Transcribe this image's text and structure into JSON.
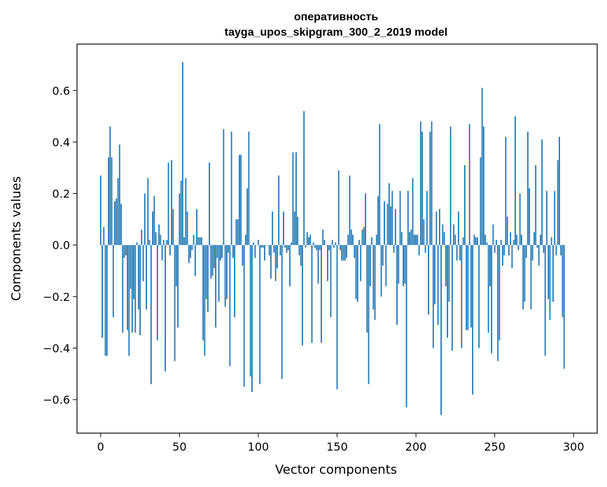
{
  "chart_data": {
    "type": "bar",
    "title": "оперативность",
    "subtitle": "tayga_upos_skipgram_300_2_2019 model",
    "xlabel": "Vector components",
    "ylabel": "Components values",
    "xlim": [
      -15,
      315
    ],
    "ylim": [
      -0.73,
      0.78
    ],
    "xticks": [
      0,
      50,
      100,
      150,
      200,
      250,
      300
    ],
    "xtick_labels": [
      "0",
      "50",
      "100",
      "150",
      "200",
      "250",
      "300"
    ],
    "yticks": [
      -0.6,
      -0.4,
      -0.2,
      0.0,
      0.2,
      0.4,
      0.6
    ],
    "ytick_labels": [
      "−0.6",
      "−0.4",
      "−0.2",
      "0.0",
      "0.2",
      "0.4",
      "0.6"
    ],
    "grid": false,
    "bar_color": "#1f77b4",
    "values": [
      0.27,
      -0.36,
      0.07,
      -0.43,
      -0.43,
      0.34,
      0.46,
      0.34,
      -0.28,
      0.17,
      0.18,
      0.26,
      0.39,
      0.16,
      -0.34,
      -0.05,
      -0.04,
      -0.33,
      -0.43,
      -0.17,
      -0.34,
      -0.21,
      -0.34,
      0.01,
      -0.25,
      -0.35,
      0.06,
      -0.14,
      0.2,
      -0.25,
      0.26,
      0.02,
      -0.54,
      0.13,
      0.19,
      0.05,
      -0.37,
      0.08,
      0.04,
      -0.06,
      0.02,
      -0.49,
      0.02,
      0.32,
      -0.04,
      0.33,
      0.14,
      -0.45,
      -0.16,
      -0.32,
      0.2,
      0.25,
      0.71,
      0.03,
      0.26,
      0.13,
      -0.07,
      -0.05,
      -0.02,
      0.04,
      -0.12,
      0.14,
      0.03,
      0.03,
      0.03,
      -0.37,
      -0.43,
      -0.21,
      -0.26,
      0.32,
      -0.13,
      -0.12,
      -0.09,
      -0.32,
      -0.05,
      -0.22,
      -0.06,
      -0.05,
      0.45,
      -0.24,
      -0.21,
      -0.03,
      -0.47,
      0.44,
      -0.05,
      -0.28,
      0.1,
      0.1,
      0.35,
      0.35,
      -0.08,
      -0.55,
      0.04,
      0.22,
      0.44,
      -0.51,
      -0.57,
      0.01,
      -0.05,
      0.0,
      0.02,
      -0.54,
      -0.01,
      -0.01,
      -0.06,
      0.0,
      0.0,
      -0.04,
      -0.13,
      0.13,
      -0.03,
      -0.14,
      -0.09,
      0.27,
      -0.04,
      -0.52,
      0.13,
      -0.01,
      -0.03,
      -0.02,
      -0.16,
      0.01,
      0.36,
      0.13,
      0.36,
      0.11,
      -0.04,
      -0.08,
      -0.39,
      0.52,
      -0.01,
      0.05,
      0.03,
      0.04,
      -0.38,
      0.01,
      -0.01,
      -0.02,
      -0.15,
      -0.02,
      -0.38,
      0.06,
      0.02,
      0.0,
      -0.14,
      -0.02,
      -0.28,
      0.02,
      -0.01,
      0.01,
      -0.56,
      0.29,
      -0.02,
      -0.06,
      -0.06,
      -0.06,
      -0.05,
      0.04,
      0.27,
      0.06,
      0.04,
      -0.05,
      -0.21,
      -0.22,
      0.02,
      -0.14,
      0.06,
      0.07,
      0.2,
      -0.34,
      -0.54,
      -0.16,
      0.03,
      -0.25,
      -0.29,
      0.04,
      0.19,
      0.47,
      -0.2,
      -0.08,
      0.17,
      -0.16,
      0.16,
      0.24,
      0.15,
      0.21,
      -0.03,
      0.14,
      -0.31,
      -0.15,
      0.21,
      0.05,
      -0.16,
      -0.15,
      -0.63,
      0.21,
      0.05,
      0.06,
      0.26,
      0.04,
      0.04,
      0.04,
      -0.04,
      0.48,
      0.44,
      0.1,
      -0.03,
      0.21,
      -0.27,
      0.44,
      0.48,
      -0.4,
      -0.23,
      0.13,
      -0.31,
      0.14,
      -0.66,
      0.08,
      0.05,
      -0.16,
      -0.36,
      -0.22,
      0.46,
      -0.41,
      0.08,
      0.04,
      -0.06,
      0.13,
      -0.06,
      -0.4,
      0.03,
      0.31,
      -0.33,
      -0.33,
      0.47,
      -0.32,
      -0.58,
      0.04,
      0.03,
      0.03,
      -0.4,
      0.34,
      0.61,
      0.46,
      0.04,
      0.01,
      -0.34,
      -0.16,
      -0.42,
      0.08,
      -0.03,
      0.02,
      -0.45,
      -0.37,
      0.02,
      -0.08,
      -0.04,
      0.42,
      0.11,
      -0.04,
      0.05,
      -0.09,
      0.02,
      0.5,
      0.04,
      -0.02,
      0.2,
      0.04,
      -0.25,
      -0.22,
      -0.05,
      0.44,
      0.22,
      -0.25,
      -0.06,
      0.05,
      0.31,
      -0.01,
      -0.08,
      0.04,
      0.41,
      -0.03,
      -0.43,
      0.21,
      -0.21,
      -0.29,
      0.03,
      -0.22,
      0.21,
      -0.04,
      0.33,
      0.42,
      -0.04,
      -0.28,
      -0.48
    ]
  }
}
